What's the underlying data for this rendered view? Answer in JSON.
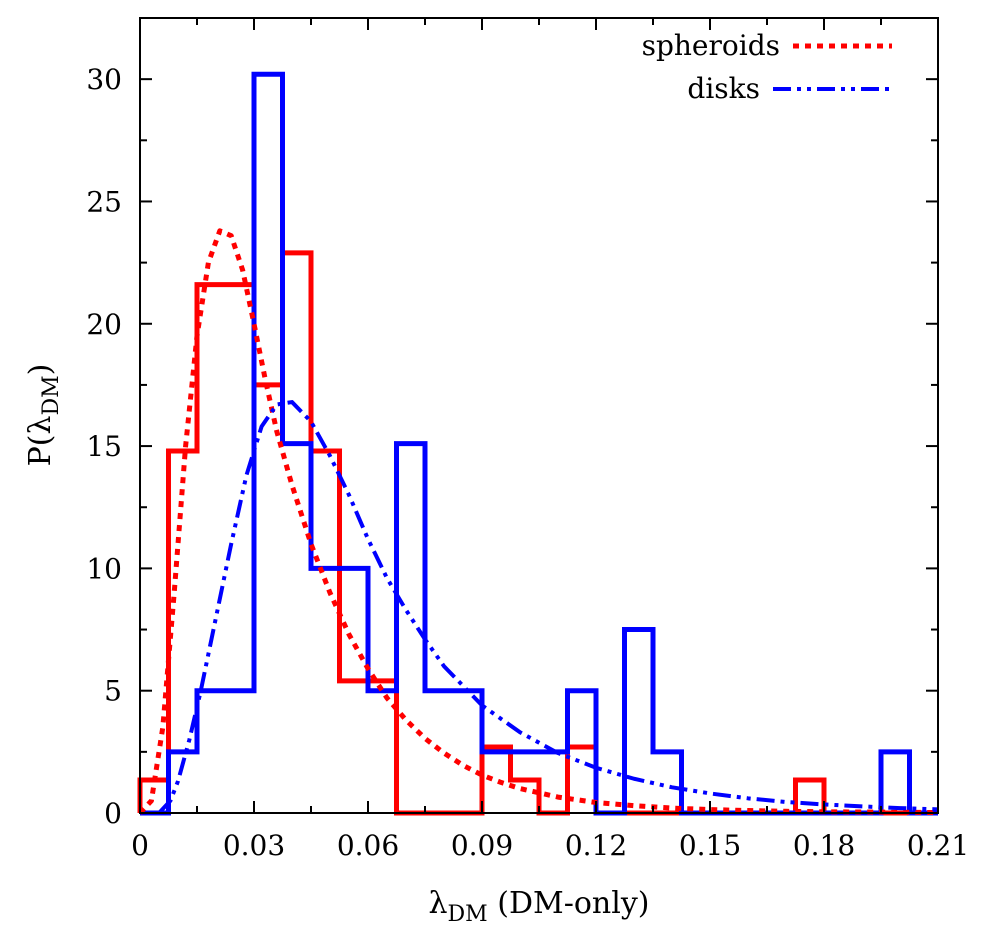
{
  "chart_data": {
    "type": "histogram",
    "xlabel": {
      "main": "λ",
      "sub": "DM",
      "suffix": " (DM-only)"
    },
    "ylabel": {
      "main": "P(λ",
      "sub": "DM",
      "suffix": ")"
    },
    "xlim": [
      0,
      0.21
    ],
    "ylim": [
      0,
      32.5
    ],
    "xticks": [
      0,
      0.03,
      0.06,
      0.09,
      0.12,
      0.15,
      0.18,
      0.21
    ],
    "xtick_labels": [
      "0",
      "0.03",
      "0.06",
      "0.09",
      "0.12",
      "0.15",
      "0.18",
      "0.21"
    ],
    "yticks": [
      0,
      5,
      10,
      15,
      20,
      25,
      30
    ],
    "ytick_labels": [
      "0",
      "5",
      "10",
      "15",
      "20",
      "25",
      "30"
    ],
    "grid": false,
    "legend_position": "top-right",
    "bin_width": 0.0075,
    "series": [
      {
        "name": "spheroids",
        "color": "#ff0000",
        "bins_start": 0,
        "values": [
          1.35,
          14.8,
          21.6,
          21.6,
          17.5,
          22.9,
          14.8,
          5.4,
          5.4,
          0,
          0,
          0,
          2.7,
          1.35,
          0,
          2.7,
          0,
          0,
          0,
          0,
          0,
          0,
          0,
          1.35,
          0,
          0,
          0,
          0
        ],
        "fit": {
          "style": "dotted",
          "points": [
            [
              0.0,
              0.0
            ],
            [
              0.003,
              0.5
            ],
            [
              0.006,
              3.5
            ],
            [
              0.009,
              9.0
            ],
            [
              0.012,
              15.0
            ],
            [
              0.015,
              19.5
            ],
            [
              0.018,
              22.5
            ],
            [
              0.021,
              23.8
            ],
            [
              0.024,
              23.6
            ],
            [
              0.027,
              22.2
            ],
            [
              0.03,
              20.0
            ],
            [
              0.033,
              17.7
            ],
            [
              0.036,
              15.6
            ],
            [
              0.04,
              13.4
            ],
            [
              0.045,
              11.0
            ],
            [
              0.05,
              9.0
            ],
            [
              0.055,
              7.3
            ],
            [
              0.06,
              5.9
            ],
            [
              0.065,
              4.7
            ],
            [
              0.07,
              3.8
            ],
            [
              0.075,
              3.05
            ],
            [
              0.08,
              2.45
            ],
            [
              0.085,
              1.95
            ],
            [
              0.09,
              1.55
            ],
            [
              0.095,
              1.25
            ],
            [
              0.1,
              1.0
            ],
            [
              0.11,
              0.65
            ],
            [
              0.12,
              0.43
            ],
            [
              0.13,
              0.3
            ],
            [
              0.14,
              0.2
            ],
            [
              0.15,
              0.14
            ],
            [
              0.16,
              0.1
            ],
            [
              0.17,
              0.07
            ],
            [
              0.18,
              0.05
            ],
            [
              0.19,
              0.04
            ],
            [
              0.2,
              0.03
            ],
            [
              0.21,
              0.02
            ]
          ]
        }
      },
      {
        "name": "disks",
        "color": "#0000ff",
        "bins_start": 0,
        "values": [
          0,
          2.5,
          5.0,
          5.0,
          30.2,
          15.1,
          10.0,
          10.0,
          5.0,
          15.1,
          5.0,
          5.0,
          2.5,
          2.5,
          2.5,
          5.0,
          0,
          7.5,
          2.5,
          0,
          0,
          0,
          0,
          0,
          0,
          0,
          2.5,
          0
        ],
        "fit": {
          "style": "dash-dot-dot",
          "points": [
            [
              0.005,
              0.0
            ],
            [
              0.008,
              0.5
            ],
            [
              0.01,
              1.3
            ],
            [
              0.013,
              3.0
            ],
            [
              0.016,
              5.0
            ],
            [
              0.02,
              8.0
            ],
            [
              0.024,
              11.0
            ],
            [
              0.028,
              13.8
            ],
            [
              0.032,
              15.8
            ],
            [
              0.036,
              16.7
            ],
            [
              0.04,
              16.8
            ],
            [
              0.045,
              16.0
            ],
            [
              0.05,
              14.6
            ],
            [
              0.055,
              13.0
            ],
            [
              0.06,
              11.2
            ],
            [
              0.065,
              9.6
            ],
            [
              0.07,
              8.3
            ],
            [
              0.075,
              7.1
            ],
            [
              0.08,
              6.0
            ],
            [
              0.09,
              4.4
            ],
            [
              0.1,
              3.3
            ],
            [
              0.11,
              2.45
            ],
            [
              0.12,
              1.85
            ],
            [
              0.13,
              1.4
            ],
            [
              0.14,
              1.05
            ],
            [
              0.15,
              0.8
            ],
            [
              0.16,
              0.6
            ],
            [
              0.17,
              0.45
            ],
            [
              0.18,
              0.35
            ],
            [
              0.19,
              0.27
            ],
            [
              0.2,
              0.2
            ],
            [
              0.21,
              0.15
            ]
          ]
        }
      }
    ]
  }
}
